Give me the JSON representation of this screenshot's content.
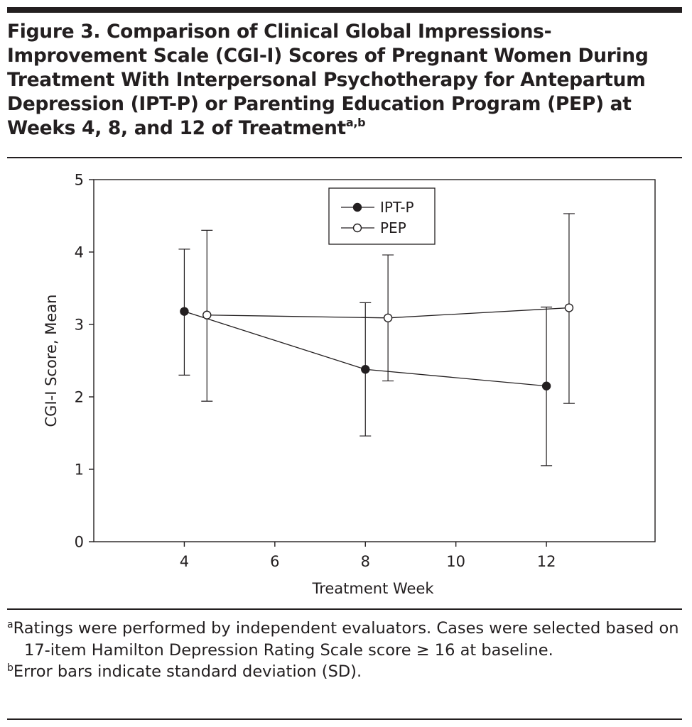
{
  "figure": {
    "title": "Figure 3. Comparison of Clinical Global Impressions-Improvement Scale (CGI-I) Scores of Pregnant Women During Treatment With Interpersonal Psychotherapy for Antepartum Depression (IPT-P) or Parenting Education Program (PEP) at Weeks 4, 8, and 12 of Treatment",
    "title_superscript": "a,b"
  },
  "chart_data": {
    "type": "line",
    "xlabel": "Treatment Week",
    "ylabel": "CGI-I Score, Mean",
    "xlim": [
      2,
      14.4
    ],
    "ylim": [
      0,
      5
    ],
    "xticks": [
      4,
      6,
      8,
      10,
      12
    ],
    "yticks": [
      0,
      1,
      2,
      3,
      4,
      5
    ],
    "grid": false,
    "legend_position": "top-center",
    "error_bars": "standard deviation",
    "series": [
      {
        "name": "IPT-P",
        "marker": "filled-circle",
        "x": [
          4,
          8,
          12
        ],
        "y": [
          3.18,
          2.38,
          2.15
        ],
        "sd_lower": [
          2.3,
          1.46,
          1.05
        ],
        "sd_upper": [
          4.04,
          3.3,
          3.24
        ]
      },
      {
        "name": "PEP",
        "marker": "open-circle",
        "x": [
          4.5,
          8.5,
          12.5
        ],
        "y": [
          3.13,
          3.09,
          3.23
        ],
        "sd_lower": [
          1.94,
          2.22,
          1.91
        ],
        "sd_upper": [
          4.3,
          3.96,
          4.53
        ]
      }
    ]
  },
  "footnotes": [
    {
      "marker": "a",
      "text": "Ratings were performed by independent evaluators. Cases were selected based on 17-item Hamilton Depression Rating Scale score ≥ 16 at baseline."
    },
    {
      "marker": "b",
      "text": "Error bars indicate standard deviation (SD)."
    }
  ],
  "colors": {
    "ink": "#231f20",
    "background": "#ffffff"
  }
}
